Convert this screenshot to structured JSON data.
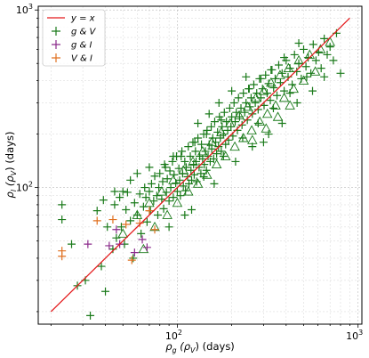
{
  "chart_data": {
    "type": "scatter",
    "x_scale": "log",
    "y_scale": "log",
    "xlim": [
      17,
      1050
    ],
    "ylim": [
      17,
      1050
    ],
    "grid": true,
    "legend_position": "top-left",
    "xlabel": {
      "pre": "ρ",
      "sub1": "g",
      "mid": " (ρ",
      "sub2": "V",
      "post": ")  (days)"
    },
    "ylabel": {
      "pre": "ρ",
      "sub1": "I",
      "mid": " (ρ",
      "sub2": "V",
      "post": ")  (days)"
    },
    "x_ticks": [
      {
        "base": "10",
        "exp": "2",
        "value": 100
      },
      {
        "base": "10",
        "exp": "3",
        "value": 1000
      }
    ],
    "y_ticks": [
      {
        "base": "10",
        "exp": "2",
        "value": 100
      },
      {
        "base": "10",
        "exp": "3",
        "value": 1000
      }
    ],
    "colors": {
      "line": "#e41a1c",
      "gV": "#1a7a1a",
      "gI": "#8b2a8b",
      "VI": "#e07020"
    },
    "reference_line": {
      "name": "y = x",
      "label_text": "y = x",
      "x": [
        20,
        900
      ],
      "y": [
        20,
        900
      ]
    },
    "legend": [
      {
        "key": "line",
        "label": "y = x"
      },
      {
        "key": "gV",
        "label": "g & V"
      },
      {
        "key": "gI",
        "label": "g & I"
      },
      {
        "key": "VI",
        "label": "V & I"
      }
    ],
    "series": [
      {
        "name": "g & V",
        "marker": "plus",
        "color_key": "gV",
        "points": [
          [
            23,
            80
          ],
          [
            23,
            66
          ],
          [
            26,
            48
          ],
          [
            28,
            28
          ],
          [
            31,
            30
          ],
          [
            33,
            19
          ],
          [
            36,
            74
          ],
          [
            38,
            36
          ],
          [
            39,
            85
          ],
          [
            40,
            26
          ],
          [
            41,
            60
          ],
          [
            44,
            45
          ],
          [
            45,
            80
          ],
          [
            46,
            52
          ],
          [
            48,
            88
          ],
          [
            49,
            60
          ],
          [
            51,
            48
          ],
          [
            52,
            75
          ],
          [
            53,
            94
          ],
          [
            55,
            65
          ],
          [
            57,
            40
          ],
          [
            58,
            82
          ],
          [
            60,
            70
          ],
          [
            62,
            92
          ],
          [
            63,
            55
          ],
          [
            65,
            78
          ],
          [
            66,
            100
          ],
          [
            67,
            88
          ],
          [
            68,
            64
          ],
          [
            70,
            95
          ],
          [
            71,
            74
          ],
          [
            72,
            105
          ],
          [
            74,
            84
          ],
          [
            75,
            116
          ],
          [
            77,
            90
          ],
          [
            78,
            70
          ],
          [
            79,
            100
          ],
          [
            80,
            120
          ],
          [
            82,
            86
          ],
          [
            83,
            108
          ],
          [
            84,
            76
          ],
          [
            86,
            130
          ],
          [
            87,
            94
          ],
          [
            88,
            112
          ],
          [
            90,
            84
          ],
          [
            91,
            124
          ],
          [
            92,
            100
          ],
          [
            94,
            140
          ],
          [
            95,
            88
          ],
          [
            96,
            118
          ],
          [
            98,
            106
          ],
          [
            99,
            150
          ],
          [
            100,
            95
          ],
          [
            102,
            128
          ],
          [
            103,
            110
          ],
          [
            104,
            90
          ],
          [
            106,
            160
          ],
          [
            107,
            120
          ],
          [
            108,
            102
          ],
          [
            110,
            140
          ],
          [
            111,
            96
          ],
          [
            112,
            130
          ],
          [
            114,
            115
          ],
          [
            115,
            170
          ],
          [
            116,
            105
          ],
          [
            118,
            150
          ],
          [
            119,
            125
          ],
          [
            120,
            110
          ],
          [
            122,
            180
          ],
          [
            123,
            135
          ],
          [
            124,
            118
          ],
          [
            126,
            160
          ],
          [
            127,
            140
          ],
          [
            128,
            108
          ],
          [
            130,
            190
          ],
          [
            132,
            130
          ],
          [
            133,
            150
          ],
          [
            135,
            120
          ],
          [
            136,
            175
          ],
          [
            138,
            145
          ],
          [
            140,
            200
          ],
          [
            141,
            135
          ],
          [
            143,
            160
          ],
          [
            145,
            125
          ],
          [
            146,
            210
          ],
          [
            148,
            150
          ],
          [
            150,
            175
          ],
          [
            152,
            140
          ],
          [
            154,
            220
          ],
          [
            155,
            165
          ],
          [
            157,
            190
          ],
          [
            159,
            145
          ],
          [
            161,
            235
          ],
          [
            163,
            180
          ],
          [
            165,
            155
          ],
          [
            167,
            205
          ],
          [
            169,
            170
          ],
          [
            171,
            250
          ],
          [
            173,
            190
          ],
          [
            175,
            160
          ],
          [
            177,
            220
          ],
          [
            180,
            200
          ],
          [
            182,
            265
          ],
          [
            185,
            175
          ],
          [
            187,
            235
          ],
          [
            190,
            210
          ],
          [
            192,
            185
          ],
          [
            195,
            280
          ],
          [
            198,
            220
          ],
          [
            200,
            250
          ],
          [
            203,
            195
          ],
          [
            206,
            300
          ],
          [
            209,
            235
          ],
          [
            212,
            265
          ],
          [
            215,
            210
          ],
          [
            218,
            320
          ],
          [
            221,
            250
          ],
          [
            225,
            280
          ],
          [
            228,
            225
          ],
          [
            232,
            340
          ],
          [
            236,
            265
          ],
          [
            240,
            300
          ],
          [
            244,
            240
          ],
          [
            248,
            360
          ],
          [
            252,
            285
          ],
          [
            256,
            320
          ],
          [
            260,
            260
          ],
          [
            265,
            380
          ],
          [
            270,
            300
          ],
          [
            275,
            340
          ],
          [
            280,
            275
          ],
          [
            285,
            410
          ],
          [
            290,
            320
          ],
          [
            296,
            360
          ],
          [
            302,
            290
          ],
          [
            308,
            430
          ],
          [
            314,
            340
          ],
          [
            320,
            385
          ],
          [
            327,
            310
          ],
          [
            334,
            460
          ],
          [
            341,
            365
          ],
          [
            348,
            410
          ],
          [
            356,
            330
          ],
          [
            364,
            490
          ],
          [
            372,
            390
          ],
          [
            380,
            440
          ],
          [
            390,
            350
          ],
          [
            400,
            520
          ],
          [
            410,
            420
          ],
          [
            420,
            470
          ],
          [
            432,
            380
          ],
          [
            445,
            560
          ],
          [
            458,
            450
          ],
          [
            470,
            500
          ],
          [
            485,
            410
          ],
          [
            500,
            600
          ],
          [
            515,
            480
          ],
          [
            530,
            540
          ],
          [
            548,
            440
          ],
          [
            565,
            640
          ],
          [
            585,
            520
          ],
          [
            605,
            580
          ],
          [
            625,
            470
          ],
          [
            650,
            690
          ],
          [
            675,
            560
          ],
          [
            700,
            620
          ],
          [
            730,
            520
          ],
          [
            760,
            740
          ],
          [
            800,
            440
          ],
          [
            150,
            260
          ],
          [
            130,
            230
          ],
          [
            170,
            300
          ],
          [
            200,
            350
          ],
          [
            240,
            420
          ],
          [
            120,
            75
          ],
          [
            160,
            105
          ],
          [
            210,
            140
          ],
          [
            260,
            170
          ],
          [
            320,
            200
          ],
          [
            90,
            60
          ],
          [
            110,
            70
          ],
          [
            95,
            150
          ],
          [
            140,
            115
          ],
          [
            180,
            150
          ],
          [
            230,
            190
          ],
          [
            280,
            230
          ],
          [
            340,
            280
          ],
          [
            420,
            340
          ],
          [
            520,
            420
          ],
          [
            470,
            650
          ],
          [
            390,
            540
          ],
          [
            330,
            460
          ],
          [
            290,
            410
          ],
          [
            250,
            360
          ],
          [
            55,
            110
          ],
          [
            50,
            95
          ],
          [
            60,
            120
          ],
          [
            70,
            130
          ],
          [
            45,
            95
          ],
          [
            300,
            180
          ],
          [
            380,
            230
          ],
          [
            460,
            300
          ],
          [
            560,
            350
          ],
          [
            650,
            420
          ],
          [
            85,
            135
          ],
          [
            105,
            150
          ],
          [
            125,
            180
          ],
          [
            145,
            200
          ],
          [
            175,
            240
          ]
        ]
      },
      {
        "name": "g & V (open triangle)",
        "marker": "triangle",
        "color_key": "gV",
        "points": [
          [
            50,
            55
          ],
          [
            60,
            70
          ],
          [
            65,
            45
          ],
          [
            70,
            82
          ],
          [
            75,
            60
          ],
          [
            82,
            95
          ],
          [
            88,
            70
          ],
          [
            95,
            110
          ],
          [
            100,
            82
          ],
          [
            108,
            125
          ],
          [
            115,
            95
          ],
          [
            122,
            140
          ],
          [
            130,
            105
          ],
          [
            138,
            160
          ],
          [
            146,
            118
          ],
          [
            155,
            180
          ],
          [
            165,
            135
          ],
          [
            175,
            205
          ],
          [
            185,
            150
          ],
          [
            196,
            230
          ],
          [
            208,
            170
          ],
          [
            220,
            255
          ],
          [
            232,
            190
          ],
          [
            245,
            285
          ],
          [
            258,
            210
          ],
          [
            272,
            320
          ],
          [
            286,
            235
          ],
          [
            300,
            350
          ],
          [
            315,
            260
          ],
          [
            330,
            390
          ],
          [
            350,
            290
          ],
          [
            370,
            430
          ],
          [
            390,
            320
          ],
          [
            412,
            470
          ],
          [
            440,
            360
          ],
          [
            470,
            520
          ],
          [
            500,
            400
          ],
          [
            540,
            560
          ],
          [
            580,
            450
          ],
          [
            620,
            600
          ],
          [
            700,
            660
          ],
          [
            420,
            290
          ],
          [
            360,
            250
          ],
          [
            310,
            215
          ],
          [
            260,
            185
          ]
        ]
      },
      {
        "name": "g & I",
        "marker": "plus",
        "color_key": "gI",
        "points": [
          [
            32,
            48
          ],
          [
            42,
            47
          ],
          [
            48,
            48
          ],
          [
            46,
            58
          ],
          [
            58,
            43
          ],
          [
            64,
            51
          ],
          [
            68,
            46
          ]
        ]
      },
      {
        "name": "V & I",
        "marker": "plus",
        "color_key": "VI",
        "points": [
          [
            23,
            44
          ],
          [
            23,
            41
          ],
          [
            36,
            65
          ],
          [
            44,
            66
          ],
          [
            52,
            62
          ],
          [
            56,
            39
          ],
          [
            62,
            63
          ],
          [
            70,
            74
          ],
          [
            75,
            58
          ]
        ]
      }
    ]
  }
}
